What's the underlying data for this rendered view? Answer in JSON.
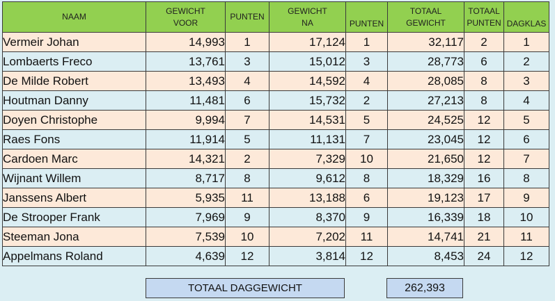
{
  "headers": {
    "naam": "NAAM",
    "gewicht_voor": [
      "GEWICHT",
      "VOOR"
    ],
    "punten1": "PUNTEN",
    "gewicht_na": [
      "GEWICHT",
      "NA"
    ],
    "punten2": "PUNTEN",
    "totaal_gewicht": [
      "TOTAAL",
      "GEWICHT"
    ],
    "totaal_punten": [
      "TOTAAL",
      "PUNTEN"
    ],
    "dagklas": "DAGKLAS"
  },
  "rows": [
    {
      "naam": "Vermeir Johan",
      "gewicht_voor": "14,993",
      "punten1": "1",
      "gewicht_na": "17,124",
      "punten2": "1",
      "totaal_gewicht": "32,117",
      "totaal_punten": "2",
      "dagklas": "1"
    },
    {
      "naam": "Lombaerts Freco",
      "gewicht_voor": "13,761",
      "punten1": "3",
      "gewicht_na": "15,012",
      "punten2": "3",
      "totaal_gewicht": "28,773",
      "totaal_punten": "6",
      "dagklas": "2"
    },
    {
      "naam": "De Milde Robert",
      "gewicht_voor": "13,493",
      "punten1": "4",
      "gewicht_na": "14,592",
      "punten2": "4",
      "totaal_gewicht": "28,085",
      "totaal_punten": "8",
      "dagklas": "3"
    },
    {
      "naam": "Houtman Danny",
      "gewicht_voor": "11,481",
      "punten1": "6",
      "gewicht_na": "15,732",
      "punten2": "2",
      "totaal_gewicht": "27,213",
      "totaal_punten": "8",
      "dagklas": "4"
    },
    {
      "naam": "Doyen Christophe",
      "gewicht_voor": "9,994",
      "punten1": "7",
      "gewicht_na": "14,531",
      "punten2": "5",
      "totaal_gewicht": "24,525",
      "totaal_punten": "12",
      "dagklas": "5"
    },
    {
      "naam": "Raes Fons",
      "gewicht_voor": "11,914",
      "punten1": "5",
      "gewicht_na": "11,131",
      "punten2": "7",
      "totaal_gewicht": "23,045",
      "totaal_punten": "12",
      "dagklas": "6"
    },
    {
      "naam": "Cardoen Marc",
      "gewicht_voor": "14,321",
      "punten1": "2",
      "gewicht_na": "7,329",
      "punten2": "10",
      "totaal_gewicht": "21,650",
      "totaal_punten": "12",
      "dagklas": "7"
    },
    {
      "naam": "Wijnant Willem",
      "gewicht_voor": "8,717",
      "punten1": "8",
      "gewicht_na": "9,612",
      "punten2": "8",
      "totaal_gewicht": "18,329",
      "totaal_punten": "16",
      "dagklas": "8"
    },
    {
      "naam": "Janssens Albert",
      "gewicht_voor": "5,935",
      "punten1": "11",
      "gewicht_na": "13,188",
      "punten2": "6",
      "totaal_gewicht": "19,123",
      "totaal_punten": "17",
      "dagklas": "9"
    },
    {
      "naam": "De Strooper Frank",
      "gewicht_voor": "7,969",
      "punten1": "9",
      "gewicht_na": "8,370",
      "punten2": "9",
      "totaal_gewicht": "16,339",
      "totaal_punten": "18",
      "dagklas": "10"
    },
    {
      "naam": "Steeman Jona",
      "gewicht_voor": "7,539",
      "punten1": "10",
      "gewicht_na": "7,202",
      "punten2": "11",
      "totaal_gewicht": "14,741",
      "totaal_punten": "21",
      "dagklas": "11"
    },
    {
      "naam": "Appelmans Roland",
      "gewicht_voor": "4,639",
      "punten1": "12",
      "gewicht_na": "3,814",
      "punten2": "12",
      "totaal_gewicht": "8,453",
      "totaal_punten": "24",
      "dagklas": "12"
    }
  ],
  "totals": {
    "label": "TOTAAL DAGGEWICHT",
    "value": "262,393"
  },
  "colors": {
    "header_bg": "#92d050",
    "row_odd_bg": "#fde9d9",
    "row_even_bg": "#dbeef3",
    "totals_bg": "#c5d9f1"
  }
}
